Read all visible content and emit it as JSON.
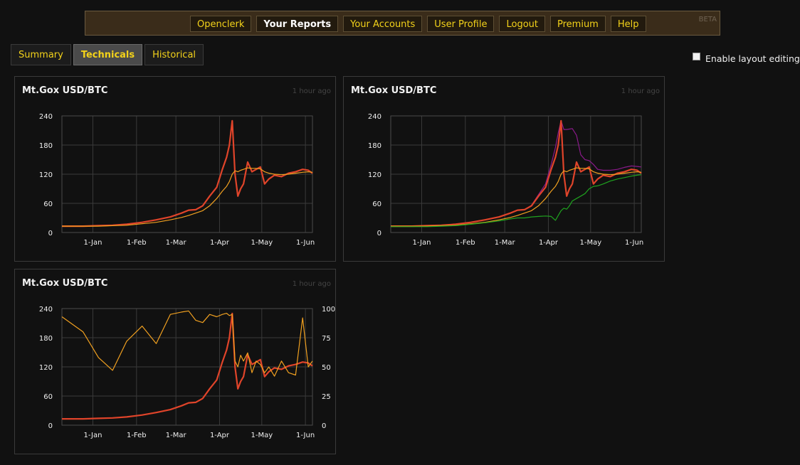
{
  "nav": {
    "items": [
      {
        "label": "Openclerk",
        "active": false
      },
      {
        "label": "Your Reports",
        "active": true
      },
      {
        "label": "Your Accounts",
        "active": false
      },
      {
        "label": "User Profile",
        "active": false
      },
      {
        "label": "Logout",
        "active": false
      },
      {
        "label": "Premium",
        "active": false
      },
      {
        "label": "Help",
        "active": false
      }
    ],
    "badge": "BETA"
  },
  "tabs": [
    {
      "label": "Summary",
      "active": false
    },
    {
      "label": "Technicals",
      "active": true
    },
    {
      "label": "Historical",
      "active": false
    }
  ],
  "layout_editing": {
    "label": "Enable layout editing",
    "checked": false
  },
  "widgets": [
    {
      "title": "Mt.Gox USD/BTC",
      "age": "1 hour ago"
    },
    {
      "title": "Mt.Gox USD/BTC",
      "age": "1 hour ago"
    },
    {
      "title": "Mt.Gox USD/BTC",
      "age": "1 hour ago"
    }
  ],
  "chart_data": [
    {
      "type": "line",
      "title": "Mt.Gox USD/BTC",
      "x_tick_labels": [
        "1-Jan",
        "1-Feb",
        "1-Mar",
        "1-Apr",
        "1-May",
        "1-Jun"
      ],
      "y_tick_labels": [
        "0",
        "60",
        "120",
        "180",
        "240"
      ],
      "ylim": [
        0,
        240
      ],
      "grid": true,
      "x": [
        "2012-12-10",
        "2012-12-25",
        "2013-01-05",
        "2013-01-15",
        "2013-01-25",
        "2013-02-05",
        "2013-02-15",
        "2013-02-25",
        "2013-03-05",
        "2013-03-10",
        "2013-03-15",
        "2013-03-20",
        "2013-03-25",
        "2013-03-30",
        "2013-04-03",
        "2013-04-06",
        "2013-04-08",
        "2013-04-10",
        "2013-04-12",
        "2013-04-14",
        "2013-04-16",
        "2013-04-18",
        "2013-04-21",
        "2013-04-24",
        "2013-04-27",
        "2013-04-30",
        "2013-05-03",
        "2013-05-06",
        "2013-05-10",
        "2013-05-15",
        "2013-05-20",
        "2013-05-25",
        "2013-05-30",
        "2013-06-03",
        "2013-06-06"
      ],
      "series": [
        {
          "color": "#e0442a",
          "values": [
            13,
            13,
            14,
            15,
            17,
            21,
            26,
            32,
            40,
            46,
            47,
            55,
            75,
            93,
            130,
            155,
            180,
            230,
            120,
            75,
            90,
            100,
            145,
            125,
            130,
            135,
            100,
            110,
            118,
            115,
            122,
            125,
            130,
            128,
            122
          ]
        },
        {
          "color": "#f0a020",
          "values": [
            13,
            13,
            13,
            14,
            15,
            18,
            21,
            26,
            31,
            35,
            40,
            45,
            55,
            70,
            85,
            95,
            105,
            120,
            127,
            125,
            128,
            130,
            133,
            132,
            132,
            131,
            125,
            122,
            120,
            119,
            120,
            122,
            124,
            125,
            124
          ]
        }
      ]
    },
    {
      "type": "line",
      "title": "Mt.Gox USD/BTC",
      "x_tick_labels": [
        "1-Jan",
        "1-Feb",
        "1-Mar",
        "1-Apr",
        "1-May",
        "1-Jun"
      ],
      "y_tick_labels": [
        "0",
        "60",
        "120",
        "180",
        "240"
      ],
      "ylim": [
        0,
        240
      ],
      "grid": true,
      "x": [
        "2012-12-10",
        "2012-12-25",
        "2013-01-05",
        "2013-01-15",
        "2013-01-25",
        "2013-02-05",
        "2013-02-15",
        "2013-02-25",
        "2013-03-05",
        "2013-03-10",
        "2013-03-15",
        "2013-03-20",
        "2013-03-25",
        "2013-03-30",
        "2013-04-03",
        "2013-04-06",
        "2013-04-08",
        "2013-04-10",
        "2013-04-12",
        "2013-04-14",
        "2013-04-16",
        "2013-04-18",
        "2013-04-21",
        "2013-04-24",
        "2013-04-27",
        "2013-04-30",
        "2013-05-03",
        "2013-05-06",
        "2013-05-10",
        "2013-05-15",
        "2013-05-20",
        "2013-05-25",
        "2013-05-30",
        "2013-06-03",
        "2013-06-06"
      ],
      "series": [
        {
          "color": "#8a1a8a",
          "values": [
            13,
            13,
            14,
            15,
            17,
            21,
            26,
            32,
            40,
            46,
            47,
            56,
            78,
            100,
            140,
            175,
            205,
            230,
            212,
            212,
            213,
            214,
            200,
            160,
            150,
            148,
            140,
            130,
            128,
            128,
            130,
            134,
            137,
            136,
            135
          ]
        },
        {
          "color": "#e0442a",
          "values": [
            13,
            13,
            14,
            15,
            17,
            21,
            26,
            32,
            40,
            46,
            47,
            55,
            75,
            93,
            130,
            155,
            180,
            230,
            120,
            75,
            90,
            100,
            145,
            125,
            130,
            135,
            100,
            110,
            118,
            115,
            122,
            125,
            130,
            128,
            122
          ]
        },
        {
          "color": "#f0a020",
          "values": [
            13,
            13,
            13,
            14,
            15,
            18,
            21,
            26,
            31,
            35,
            40,
            45,
            55,
            70,
            85,
            95,
            105,
            120,
            127,
            125,
            128,
            130,
            133,
            132,
            132,
            131,
            125,
            122,
            120,
            119,
            120,
            122,
            124,
            125,
            124
          ]
        },
        {
          "color": "#1fa31f",
          "values": [
            12,
            12,
            12,
            13,
            14,
            17,
            20,
            24,
            28,
            30,
            30,
            32,
            33,
            34,
            33,
            25,
            35,
            45,
            50,
            48,
            55,
            65,
            70,
            75,
            80,
            90,
            95,
            96,
            100,
            106,
            110,
            113,
            116,
            118,
            119
          ]
        }
      ]
    },
    {
      "type": "line",
      "title": "Mt.Gox USD/BTC",
      "x_tick_labels": [
        "1-Jan",
        "1-Feb",
        "1-Mar",
        "1-Apr",
        "1-May",
        "1-Jun"
      ],
      "y_tick_labels": [
        "0",
        "60",
        "120",
        "180",
        "240"
      ],
      "y2_tick_labels": [
        "0",
        "25",
        "50",
        "75",
        "100"
      ],
      "ylim": [
        0,
        240
      ],
      "y2lim": [
        0,
        100
      ],
      "grid": true,
      "x": [
        "2012-12-10",
        "2012-12-25",
        "2013-01-05",
        "2013-01-15",
        "2013-01-25",
        "2013-02-05",
        "2013-02-15",
        "2013-02-25",
        "2013-03-05",
        "2013-03-10",
        "2013-03-15",
        "2013-03-20",
        "2013-03-25",
        "2013-03-30",
        "2013-04-03",
        "2013-04-06",
        "2013-04-08",
        "2013-04-10",
        "2013-04-12",
        "2013-04-14",
        "2013-04-16",
        "2013-04-18",
        "2013-04-21",
        "2013-04-24",
        "2013-04-27",
        "2013-04-30",
        "2013-05-03",
        "2013-05-06",
        "2013-05-10",
        "2013-05-15",
        "2013-05-20",
        "2013-05-25",
        "2013-05-30",
        "2013-06-03",
        "2013-06-06"
      ],
      "series": [
        {
          "color": "#e0442a",
          "axis": "left",
          "values": [
            13,
            13,
            14,
            15,
            17,
            21,
            26,
            32,
            40,
            46,
            47,
            55,
            75,
            93,
            130,
            155,
            180,
            230,
            120,
            75,
            90,
            100,
            145,
            125,
            130,
            135,
            100,
            110,
            118,
            115,
            122,
            125,
            130,
            128,
            122
          ]
        },
        {
          "color": "#f0a020",
          "axis": "right",
          "values": [
            93,
            80,
            58,
            47,
            72,
            85,
            70,
            95,
            97,
            98,
            90,
            88,
            95,
            93,
            95,
            96,
            94,
            95,
            55,
            50,
            60,
            55,
            62,
            45,
            55,
            52,
            45,
            50,
            42,
            55,
            45,
            43,
            92,
            50,
            55
          ]
        }
      ]
    }
  ]
}
